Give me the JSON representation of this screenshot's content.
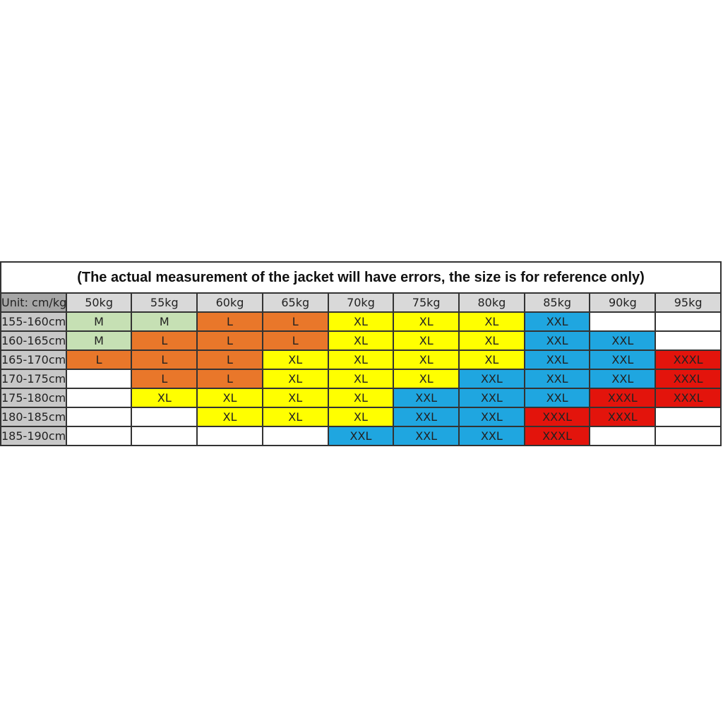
{
  "title": "(The actual measurement of the jacket will have errors, the size is for reference only)",
  "table": {
    "header": [
      "Unit: cm/kg",
      "50kg",
      "55kg",
      "60kg",
      "65kg",
      "70kg",
      "75kg",
      "80kg",
      "85kg",
      "90kg",
      "95kg"
    ],
    "rows": [
      [
        "155-160cm",
        "M",
        "M",
        "L",
        "L",
        "XL",
        "XL",
        "XL",
        "XXL",
        null,
        null
      ],
      [
        "160-165cm",
        "M",
        "L",
        "L",
        "L",
        "XL",
        "XL",
        "XL",
        "XXL",
        "XXL",
        null
      ],
      [
        "165-170cm",
        "L",
        "L",
        "L",
        "XL",
        "XL",
        "XL",
        "XL",
        "XXL",
        "XXL",
        "XXXL"
      ],
      [
        "170-175cm",
        null,
        "L",
        "L",
        "XL",
        "XL",
        "XL",
        "XXL",
        "XXL",
        "XXL",
        "XXXL"
      ],
      [
        "175-180cm",
        null,
        "XL",
        "XL",
        "XL",
        "XL",
        "XXL",
        "XXL",
        "XXL",
        "XXXL",
        "XXXL"
      ],
      [
        "180-185cm",
        null,
        null,
        "XL",
        "XL",
        "XL",
        "XXL",
        "XXL",
        "XXXL",
        "XXXL",
        null
      ],
      [
        "185-190cm",
        null,
        null,
        null,
        null,
        "XXL",
        "XXL",
        "XXL",
        "XXXL",
        null,
        null
      ]
    ],
    "colors": {
      "M": "#c6e0b4",
      "L": "#e9772a",
      "XL": "#ffff00",
      "XXL": "#1fa6e0",
      "XXXL": "#e3140c"
    }
  }
}
